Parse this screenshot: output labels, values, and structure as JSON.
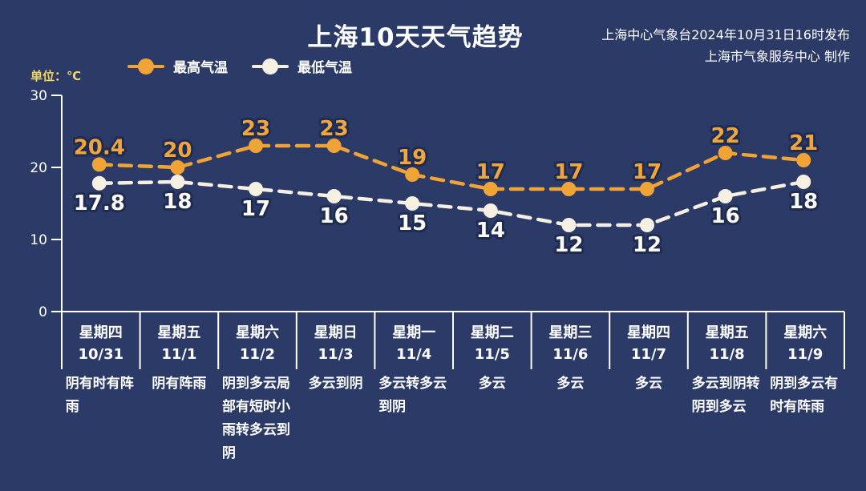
{
  "header": {
    "title": "上海10天天气趋势",
    "source_line1": "上海中心气象台2024年10月31日16时发布",
    "source_line2": "上海市气象服务中心 制作"
  },
  "unit_label": "单位：℃",
  "colors": {
    "background": "#2b3a67",
    "text": "#ffffff",
    "axis": "#ffffff",
    "unit": "#f0d467",
    "high": "#f0a435",
    "high_label": "#f2a53c",
    "low": "#f5f0e1",
    "low_label": "#fcfaf3",
    "label_outline": "#1f2c52"
  },
  "chart_data": {
    "type": "line",
    "title": "上海10天天气趋势",
    "ylabel": "单位：℃",
    "ylim": [
      0,
      30
    ],
    "yticks": [
      0,
      10,
      20,
      30
    ],
    "grid": false,
    "line_style": "dashed",
    "legend_position": "top-left",
    "categories": [
      "10/31",
      "11/1",
      "11/2",
      "11/3",
      "11/4",
      "11/5",
      "11/6",
      "11/7",
      "11/8",
      "11/9"
    ],
    "weekdays": [
      "星期四",
      "星期五",
      "星期六",
      "星期日",
      "星期一",
      "星期二",
      "星期三",
      "星期四",
      "星期五",
      "星期六"
    ],
    "weather": [
      "阴有时有阵雨",
      "阴有阵雨",
      "阴到多云局部有短时小雨转多云到阴",
      "多云到阴",
      "多云转多云到阴",
      "多云",
      "多云",
      "多云",
      "多云到阴转阴到多云",
      "阴到多云有时有阵雨"
    ],
    "series": [
      {
        "name": "最高气温",
        "values": [
          20.4,
          20,
          23,
          23,
          19,
          17,
          17,
          17,
          22,
          21
        ]
      },
      {
        "name": "最低气温",
        "values": [
          17.8,
          18,
          17,
          16,
          15,
          14,
          12,
          12,
          16,
          18
        ]
      }
    ]
  }
}
